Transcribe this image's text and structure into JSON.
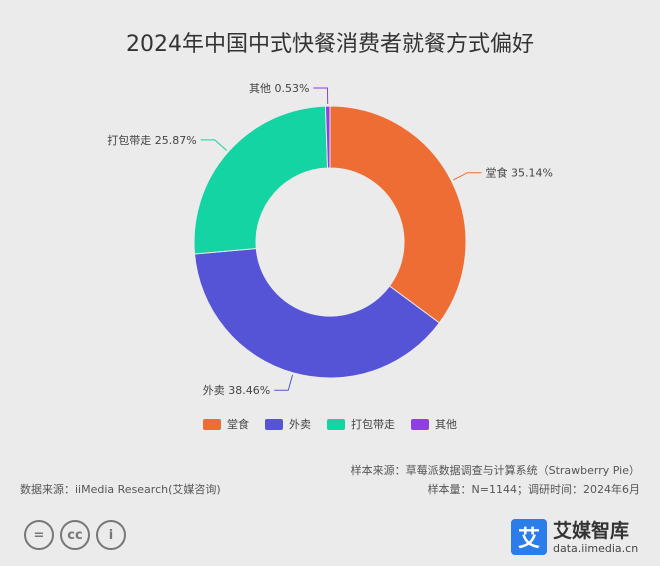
{
  "title": "2024年中国中式快餐消费者就餐方式偏好",
  "chart_data": {
    "type": "pie",
    "title": "2024年中国中式快餐消费者就餐方式偏好",
    "categories": [
      "堂食",
      "外卖",
      "打包带走",
      "其他"
    ],
    "values": [
      35.14,
      38.46,
      25.87,
      0.53
    ],
    "unit": "%",
    "labels": [
      "堂食 35.14%",
      "外卖 38.46%",
      "打包带走 25.87%",
      "其他 0.53%"
    ],
    "colors": [
      "#ee6d35",
      "#5654d6",
      "#15d4a3",
      "#8e3ee2"
    ],
    "donut": true,
    "legend_position": "bottom"
  },
  "legend": [
    {
      "label": "堂食",
      "color": "#ee6d35"
    },
    {
      "label": "外卖",
      "color": "#5654d6"
    },
    {
      "label": "打包带走",
      "color": "#15d4a3"
    },
    {
      "label": "其他",
      "color": "#8e3ee2"
    }
  ],
  "source": "数据来源：iiMedia Research(艾媒咨询)",
  "sample_source": "样本来源：草莓派数据调查与计算系统（Strawberry Pie）",
  "sample_info": "样本量：N=1144；调研时间：2024年6月",
  "license_icons": [
    "=",
    "cc",
    "i"
  ],
  "brand": {
    "logo_char": "艾",
    "name": "艾媒智库",
    "url": "data.iimedia.cn"
  }
}
